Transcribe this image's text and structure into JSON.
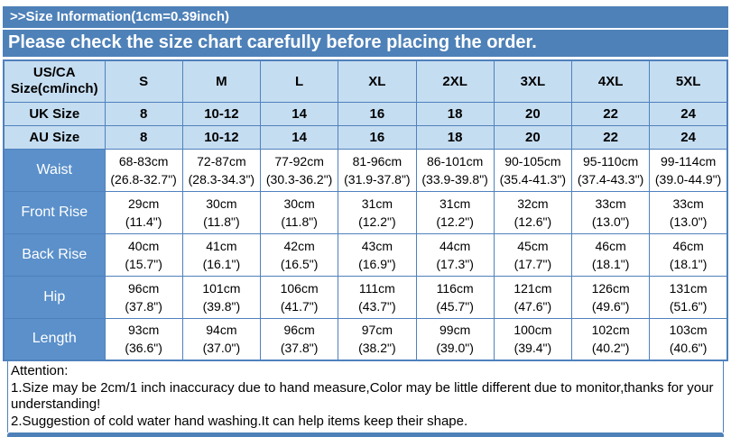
{
  "colors": {
    "banner_blue": "#4e81b8",
    "row_label_blue": "#5b90ca",
    "header_light_blue": "#c5ddf1",
    "border_blue": "#4f81bd",
    "text_black": "#000000",
    "text_white": "#ffffff"
  },
  "banner": {
    "title": ">>Size Information(1cm=0.39inch)",
    "subtitle": "Please check the size chart carefully before placing the order."
  },
  "table": {
    "corner_header_lines": [
      "US/CA",
      "Size(cm/inch)"
    ],
    "size_columns": [
      "S",
      "M",
      "L",
      "XL",
      "2XL",
      "3XL",
      "4XL",
      "5XL"
    ],
    "size_rows": [
      {
        "label": "UK Size",
        "values": [
          "8",
          "10-12",
          "14",
          "16",
          "18",
          "20",
          "22",
          "24"
        ]
      },
      {
        "label": "AU Size",
        "values": [
          "8",
          "10-12",
          "14",
          "16",
          "18",
          "20",
          "22",
          "24"
        ]
      }
    ],
    "measure_rows": [
      {
        "label": "Waist",
        "cells": [
          {
            "cm": "68-83cm",
            "in": "(26.8-32.7\")"
          },
          {
            "cm": "72-87cm",
            "in": "(28.3-34.3\")"
          },
          {
            "cm": "77-92cm",
            "in": "(30.3-36.2\")"
          },
          {
            "cm": "81-96cm",
            "in": "(31.9-37.8\")"
          },
          {
            "cm": "86-101cm",
            "in": "(33.9-39.8\")"
          },
          {
            "cm": "90-105cm",
            "in": "(35.4-41.3\")"
          },
          {
            "cm": "95-110cm",
            "in": "(37.4-43.3\")"
          },
          {
            "cm": "99-114cm",
            "in": "(39.0-44.9\")"
          }
        ]
      },
      {
        "label": "Front Rise",
        "cells": [
          {
            "cm": "29cm",
            "in": "(11.4\")"
          },
          {
            "cm": "30cm",
            "in": "(11.8\")"
          },
          {
            "cm": "30cm",
            "in": "(11.8\")"
          },
          {
            "cm": "31cm",
            "in": "(12.2\")"
          },
          {
            "cm": "31cm",
            "in": "(12.2\")"
          },
          {
            "cm": "32cm",
            "in": "(12.6\")"
          },
          {
            "cm": "33cm",
            "in": "(13.0\")"
          },
          {
            "cm": "33cm",
            "in": "(13.0\")"
          }
        ]
      },
      {
        "label": "Back Rise",
        "cells": [
          {
            "cm": "40cm",
            "in": "(15.7\")"
          },
          {
            "cm": "41cm",
            "in": "(16.1\")"
          },
          {
            "cm": "42cm",
            "in": "(16.5\")"
          },
          {
            "cm": "43cm",
            "in": "(16.9\")"
          },
          {
            "cm": "44cm",
            "in": "(17.3\")"
          },
          {
            "cm": "45cm",
            "in": "(17.7\")"
          },
          {
            "cm": "46cm",
            "in": "(18.1\")"
          },
          {
            "cm": "46cm",
            "in": "(18.1\")"
          }
        ]
      },
      {
        "label": "Hip",
        "cells": [
          {
            "cm": "96cm",
            "in": "(37.8\")"
          },
          {
            "cm": "101cm",
            "in": "(39.8\")"
          },
          {
            "cm": "106cm",
            "in": "(41.7\")"
          },
          {
            "cm": "111cm",
            "in": "(43.7\")"
          },
          {
            "cm": "116cm",
            "in": "(45.7\")"
          },
          {
            "cm": "121cm",
            "in": "(47.6\")"
          },
          {
            "cm": "126cm",
            "in": "(49.6\")"
          },
          {
            "cm": "131cm",
            "in": "(51.6\")"
          }
        ]
      },
      {
        "label": "Length",
        "cells": [
          {
            "cm": "93cm",
            "in": "(36.6\")"
          },
          {
            "cm": "94cm",
            "in": "(37.0\")"
          },
          {
            "cm": "96cm",
            "in": "(37.8\")"
          },
          {
            "cm": "97cm",
            "in": "(38.2\")"
          },
          {
            "cm": "99cm",
            "in": "(39.0\")"
          },
          {
            "cm": "100cm",
            "in": "(39.4\")"
          },
          {
            "cm": "102cm",
            "in": "(40.2\")"
          },
          {
            "cm": "103cm",
            "in": "(40.6\")"
          }
        ]
      }
    ]
  },
  "attention": {
    "title": "Attention:",
    "note1": "1.Size may be 2cm/1 inch inaccuracy due to hand measure,Color may be little different due to monitor,thanks for your understanding!",
    "note2": "2.Suggestion of cold water hand washing.It can help items keep their shape."
  }
}
